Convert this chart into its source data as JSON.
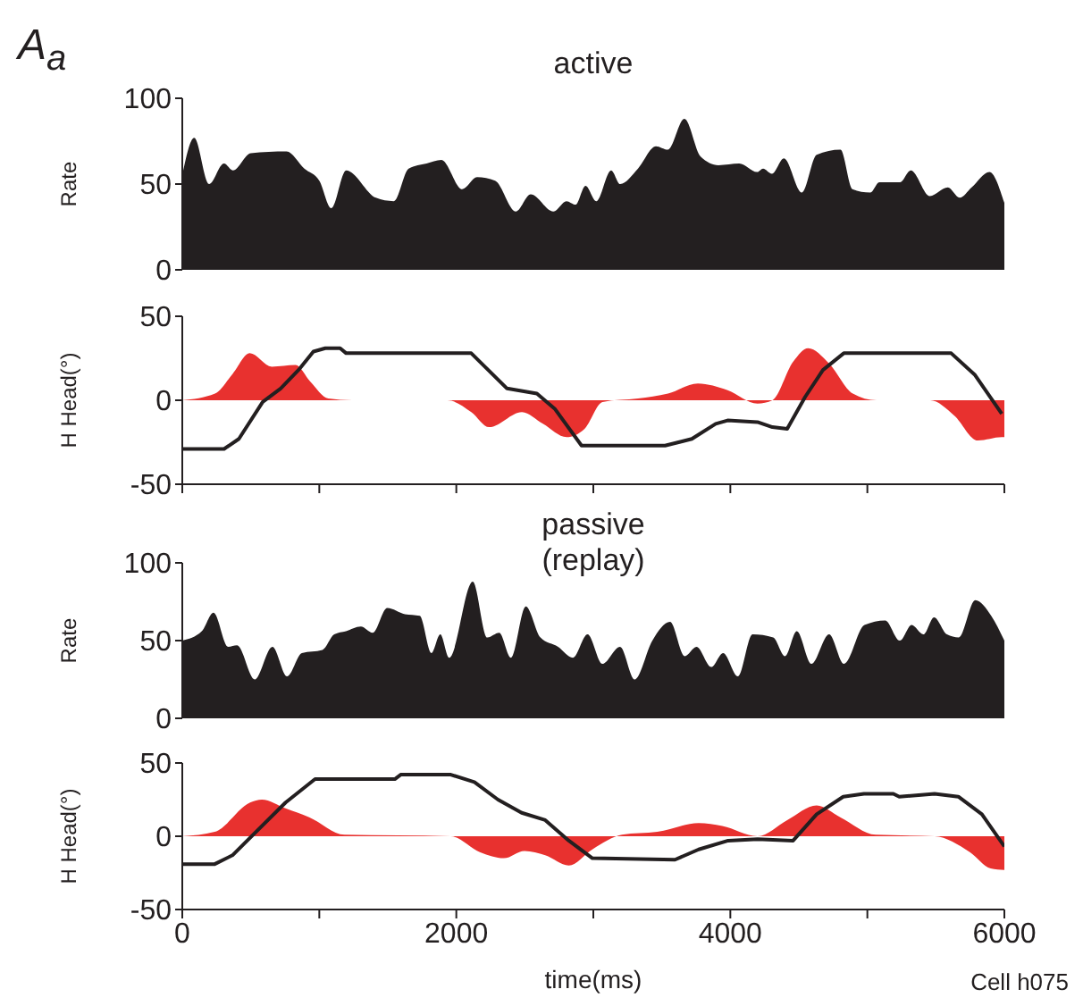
{
  "chart_data": [
    {
      "type": "area",
      "title": "active",
      "ylabel": "Rate",
      "annotations": [
        "A$_{a}$"
      ],
      "color": "#231f20",
      "xlim": [
        0,
        6000
      ],
      "ylim": [
        0,
        100
      ],
      "yticks": [
        0,
        50,
        100
      ],
      "tick_labels": "y",
      "grid": false,
      "legend": false,
      "x": [
        0,
        87,
        196,
        304,
        370,
        500,
        761,
        891,
        1000,
        1087,
        1196,
        1413,
        1543,
        1652,
        1783,
        1891,
        2043,
        2152,
        2283,
        2435,
        2543,
        2709,
        2804,
        2870,
        2943,
        3022,
        3130,
        3196,
        3326,
        3457,
        3543,
        3665,
        3783,
        3913,
        4065,
        4196,
        4239,
        4304,
        4391,
        4522,
        4630,
        4804,
        4891,
        5022,
        5087,
        5239,
        5317,
        5457,
        5587,
        5674,
        5761,
        5891,
        6000
      ],
      "values": [
        55,
        77,
        50,
        62,
        58,
        68,
        69,
        59,
        52,
        36,
        58,
        42,
        40,
        59,
        62,
        64,
        47,
        54,
        52,
        34,
        44,
        34,
        40,
        38,
        49,
        40,
        58,
        50,
        59,
        72,
        70,
        88,
        66,
        61,
        62,
        57,
        59,
        56,
        65,
        45,
        67,
        70,
        47,
        45,
        51,
        51,
        58,
        43,
        48,
        42,
        48,
        57,
        39
      ]
    },
    {
      "type": "line",
      "ylabel": "H Head(°)",
      "xlim": [
        0,
        6000
      ],
      "xticks": [
        {
          "value": 0,
          "label": null
        },
        {
          "value": 1000,
          "label": null
        },
        {
          "value": 2000,
          "label": null
        },
        {
          "value": 3000,
          "label": null
        },
        {
          "value": 4000,
          "label": null
        },
        {
          "value": 5000,
          "label": null
        },
        {
          "value": 6000,
          "label": null
        }
      ],
      "ylim": [
        -50,
        50
      ],
      "yticks": [
        -50,
        0,
        50
      ],
      "tick_labels": "y",
      "grid": false,
      "legend": false,
      "series": [
        {
          "type": "area",
          "color": "#e8312f",
          "x": [
            0,
            239,
            370,
            492,
            653,
            827,
            935,
            1066,
            1240,
            1936,
            2109,
            2240,
            2479,
            2632,
            2805,
            2936,
            3067,
            3326,
            3545,
            3763,
            3980,
            4198,
            4307,
            4459,
            4568,
            4720,
            4894,
            5068,
            5459,
            5633,
            5807,
            5981,
            6000
          ],
          "values": [
            0,
            4,
            16,
            28,
            20,
            21,
            11,
            1,
            0,
            0,
            -7,
            -16,
            -7,
            -14,
            -22,
            -17,
            -1,
            1,
            4,
            10,
            6,
            -2,
            0,
            23,
            31,
            22,
            4,
            0,
            0,
            -9,
            -24,
            -22,
            -22
          ]
        },
        {
          "color": "#231f20",
          "x": [
            0,
            305,
            413,
            587,
            718,
            848,
            957,
            1044,
            1152,
            1196,
            2109,
            2370,
            2588,
            2718,
            2914,
            3524,
            3719,
            3893,
            3980,
            4198,
            4307,
            4415,
            4546,
            4676,
            4828,
            5612,
            5786,
            5981
          ],
          "values": [
            -29,
            -29,
            -23,
            -1,
            7,
            18,
            29,
            31,
            31,
            28,
            28,
            7,
            4,
            -5,
            -27,
            -27,
            -23,
            -14,
            -12,
            -13,
            -16,
            -17,
            2,
            18,
            28,
            28,
            15,
            -8
          ]
        }
      ]
    },
    {
      "type": "area",
      "title": "passive (replay)",
      "ylabel": "Rate",
      "color": "#231f20",
      "xlim": [
        0,
        6000
      ],
      "ylim": [
        0,
        100
      ],
      "yticks": [
        0,
        50,
        100
      ],
      "tick_labels": "y",
      "grid": false,
      "legend": false,
      "x": [
        0,
        142,
        228,
        335,
        400,
        529,
        658,
        765,
        873,
        1023,
        1109,
        1195,
        1303,
        1389,
        1496,
        1625,
        1733,
        1819,
        1883,
        1948,
        2120,
        2227,
        2313,
        2399,
        2507,
        2614,
        2743,
        2851,
        2958,
        3066,
        3195,
        3302,
        3431,
        3560,
        3667,
        3753,
        3861,
        3947,
        4055,
        4162,
        4313,
        4399,
        4485,
        4592,
        4721,
        4829,
        4979,
        5130,
        5237,
        5323,
        5409,
        5487,
        5581,
        5667,
        5788,
        5904,
        6000
      ],
      "values": [
        50,
        56,
        68,
        46,
        47,
        25,
        46,
        27,
        42,
        44,
        54,
        56,
        59,
        55,
        71,
        67,
        66,
        42,
        54,
        39,
        88,
        52,
        55,
        39,
        72,
        52,
        46,
        39,
        54,
        35,
        46,
        25,
        50,
        62,
        40,
        46,
        33,
        42,
        27,
        54,
        52,
        40,
        56,
        35,
        54,
        35,
        60,
        63,
        50,
        60,
        54,
        65,
        54,
        52,
        76,
        66,
        50
      ]
    },
    {
      "type": "line",
      "ylabel": "H Head(°)",
      "xlabel": "time(ms)",
      "annotations": [
        "Cell h075"
      ],
      "xlim": [
        0,
        6000
      ],
      "xticks": [
        0,
        {
          "value": 1000,
          "label": null
        },
        2000,
        {
          "value": 3000,
          "label": null
        },
        4000,
        {
          "value": 5000,
          "label": null
        },
        6000
      ],
      "ylim": [
        -50,
        50
      ],
      "yticks": [
        -50,
        0,
        50
      ],
      "grid": false,
      "legend": false,
      "series": [
        {
          "type": "area",
          "color": "#e8312f",
          "x": [
            0,
            237,
            495,
            581,
            754,
            926,
            1184,
            1960,
            2175,
            2347,
            2498,
            2649,
            2821,
            2993,
            3209,
            3467,
            3769,
            3941,
            4199,
            4415,
            4630,
            4802,
            5061,
            5491,
            5750,
            5900,
            6000
          ],
          "values": [
            0,
            3,
            23,
            25,
            19,
            13,
            1,
            0,
            -11,
            -15,
            -10,
            -13,
            -20,
            -9,
            1,
            3,
            9,
            7,
            0,
            11,
            21,
            13,
            1,
            0,
            -11,
            -22,
            -23
          ]
        },
        {
          "color": "#231f20",
          "x": [
            0,
            237,
            366,
            538,
            754,
            969,
            1551,
            1594,
            1960,
            2132,
            2304,
            2477,
            2649,
            2821,
            2993,
            3596,
            3769,
            3984,
            4199,
            4458,
            4630,
            4824,
            4975,
            5190,
            5233,
            5491,
            5664,
            5836,
            6000
          ],
          "values": [
            -19,
            -19,
            -13,
            3,
            23,
            39,
            39,
            42,
            42,
            37,
            25,
            16,
            11,
            -3,
            -15,
            -16,
            -9,
            -3,
            -2,
            -3,
            15,
            27,
            29,
            29,
            27,
            29,
            27,
            15,
            -7
          ]
        }
      ]
    }
  ]
}
